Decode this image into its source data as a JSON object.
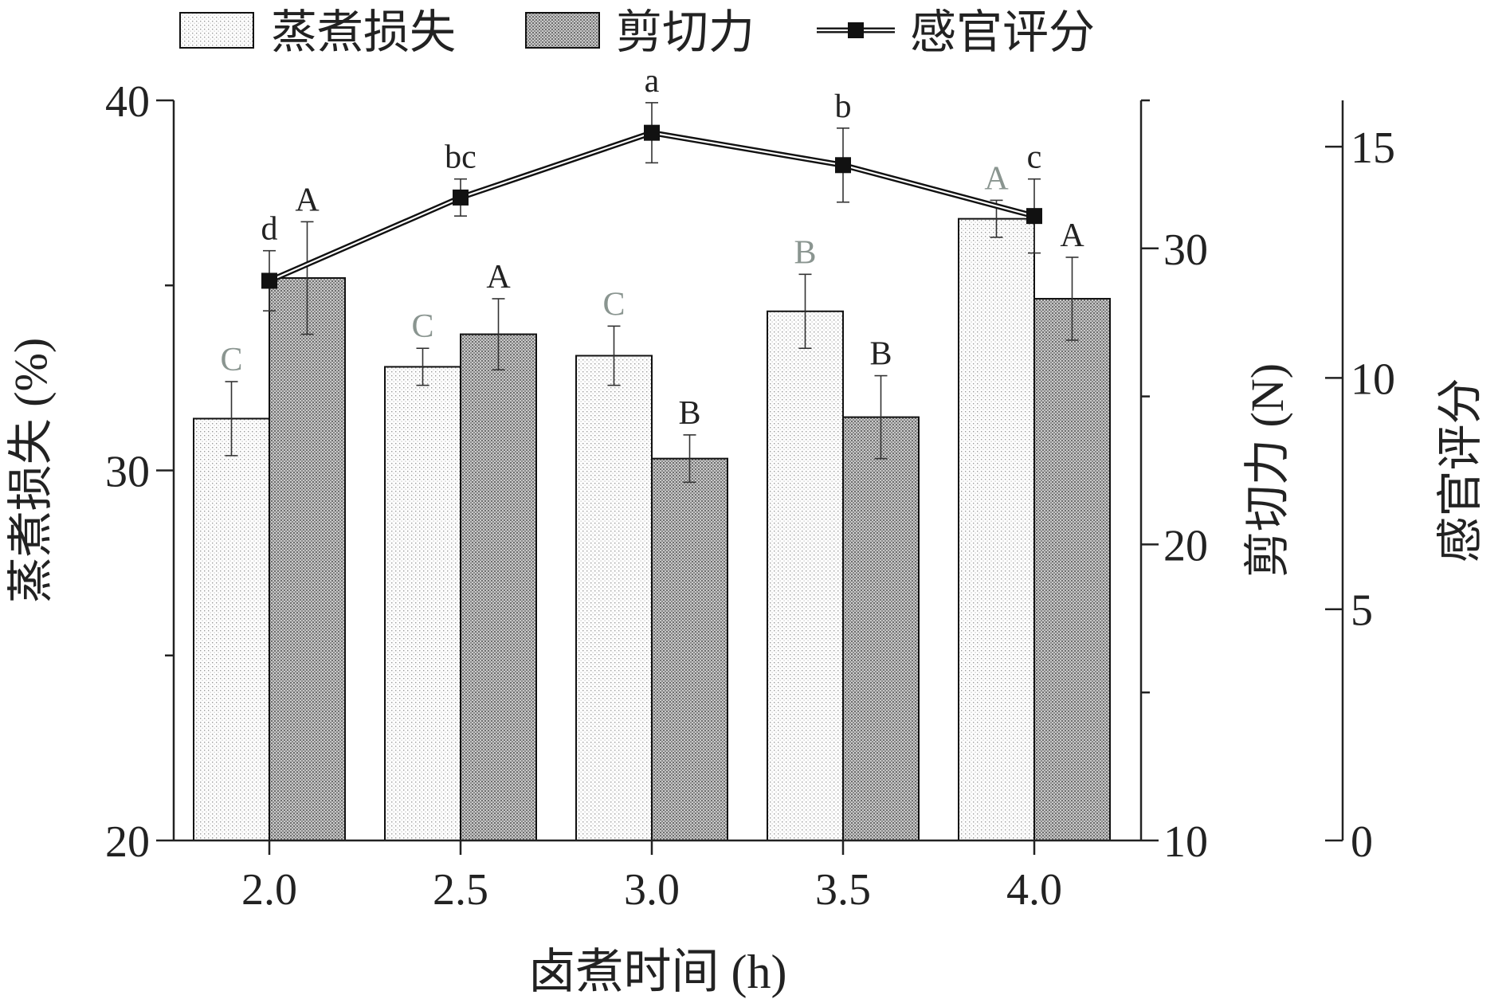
{
  "chart_data": {
    "type": "bar",
    "xlabel": "卤煮时间 (h)",
    "categories": [
      "2.0",
      "2.5",
      "3.0",
      "3.5",
      "4.0"
    ],
    "legend": {
      "placement": "top",
      "entries": [
        "蒸煮损失",
        "剪切力",
        "感官评分"
      ]
    },
    "axes": {
      "y_left": {
        "label": "蒸煮损失 (%)",
        "ylim": [
          20,
          40
        ],
        "ticks": [
          "20",
          "30",
          "40"
        ]
      },
      "y_right1": {
        "label": "剪切力 (N)",
        "ylim": [
          10,
          35
        ],
        "ticks": [
          "10",
          "20",
          "30"
        ]
      },
      "y_right2": {
        "label": "感官评分",
        "ylim": [
          0,
          16
        ],
        "ticks": [
          "0",
          "5",
          "10",
          "15"
        ]
      }
    },
    "series": [
      {
        "name": "蒸煮损失",
        "type": "bar",
        "axis": "y_left",
        "values": [
          31.4,
          32.8,
          33.1,
          34.3,
          36.8
        ],
        "errors": [
          1.0,
          0.5,
          0.8,
          1.0,
          0.5
        ],
        "letters": [
          "C",
          "C",
          "C",
          "B",
          "A"
        ]
      },
      {
        "name": "剪切力",
        "type": "bar",
        "axis": "y_right1",
        "values": [
          29.0,
          27.1,
          22.9,
          24.3,
          28.3
        ],
        "errors": [
          1.9,
          1.2,
          0.8,
          1.4,
          1.4
        ],
        "letters": [
          "A",
          "A",
          "B",
          "B",
          "A"
        ]
      },
      {
        "name": "感官评分",
        "type": "line",
        "axis": "y_right2",
        "values": [
          12.1,
          13.9,
          15.3,
          14.6,
          13.5
        ],
        "errors": [
          0.65,
          0.4,
          0.65,
          0.8,
          0.8
        ],
        "letters": [
          "d",
          "bc",
          "a",
          "b",
          "c"
        ]
      }
    ],
    "colors": {
      "text_dark": "#222222",
      "letter_gray": "#8a9590",
      "bar_edge": "#111111",
      "line": "#111111"
    }
  }
}
